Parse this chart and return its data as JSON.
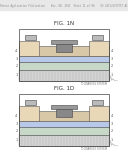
{
  "bg_color": "#f5f5f0",
  "header_text": "Patent Application Publication    Nov. 08, 2011  Sheet 11 of 88    US 2011/0272757 A1",
  "fig1_label": "FIG. 1N",
  "fig2_label": "FIG. 1D",
  "page_bg": "#ffffff"
}
